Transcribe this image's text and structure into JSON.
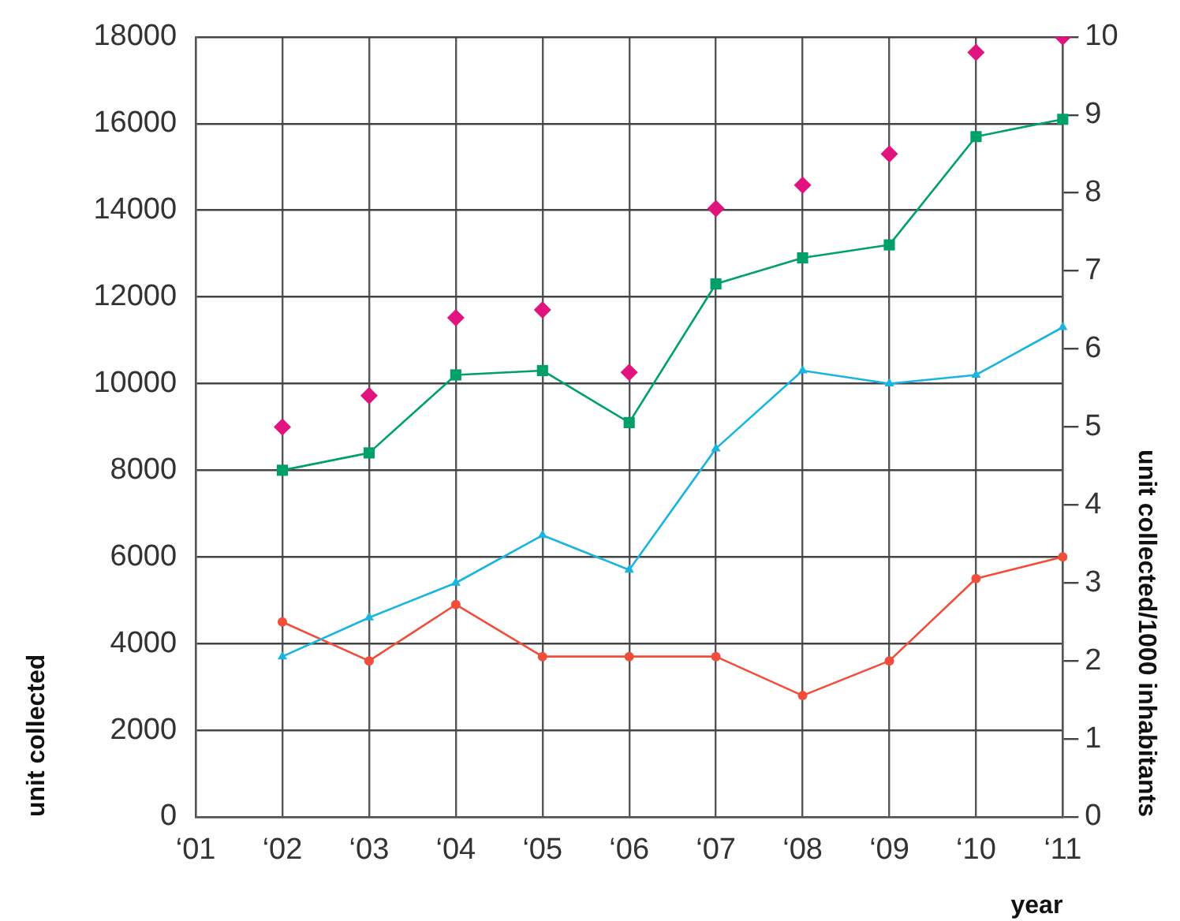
{
  "chart_data": {
    "type": "line",
    "xlabel": "year",
    "ylabel": "unit collected",
    "y2label": "unit collected/1000 inhabitants",
    "categories": [
      "‘01",
      "‘02",
      "‘03",
      "‘04",
      "‘05",
      "‘06",
      "‘07",
      "‘08",
      "‘09",
      "‘10",
      "‘11"
    ],
    "series": [
      {
        "marker": "square",
        "color": "#00a06a",
        "values": [
          null,
          8000,
          8400,
          10200,
          10300,
          9100,
          12300,
          12900,
          13200,
          15700,
          16100
        ]
      },
      {
        "marker": "triangle",
        "color": "#1ab4e0",
        "values": [
          null,
          3700,
          4600,
          5400,
          6500,
          5700,
          8500,
          10300,
          10000,
          10200,
          11300
        ]
      },
      {
        "marker": "circle",
        "color": "#f04e3a",
        "values": [
          null,
          4500,
          3600,
          4900,
          3700,
          3700,
          3700,
          2800,
          3600,
          5500,
          6000
        ]
      },
      {
        "type": "scatter",
        "marker": "diamond",
        "axis": "y2",
        "color": "#e0137f",
        "values": [
          null,
          5.0,
          5.4,
          6.4,
          6.5,
          5.7,
          7.8,
          8.1,
          8.5,
          9.8,
          10
        ]
      }
    ],
    "ylim": [
      0,
      18000
    ],
    "yticks": [
      0,
      2000,
      4000,
      6000,
      8000,
      10000,
      12000,
      14000,
      16000,
      18000
    ],
    "y2lim": [
      0,
      10
    ],
    "y2ticks": [
      0,
      1,
      2,
      3,
      4,
      5,
      6,
      7,
      8,
      9,
      10
    ],
    "grid": true,
    "legend": false
  }
}
